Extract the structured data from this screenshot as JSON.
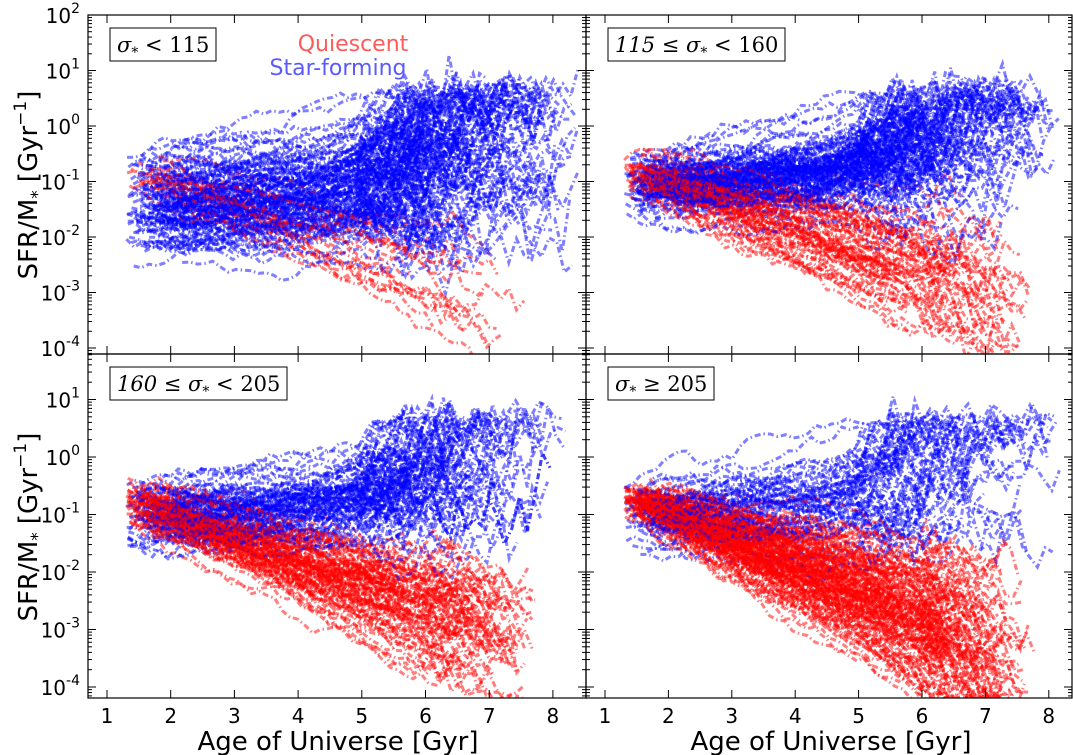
{
  "chart_data": {
    "type": "line",
    "layout": "2x2 panels, shared axes",
    "xlabel": "Age of Universe [Gyr]",
    "ylabel": "SFR/M_* [Gyr^-1]",
    "ylabel_parts": {
      "main": "SFR/M",
      "sub": "*",
      "unit": "[Gyr",
      "sup": "−1",
      "close": "]"
    },
    "xlim": [
      0.7,
      8.5
    ],
    "ylim": [
      5e-05,
      100
    ],
    "yscale": "log",
    "x_ticks": [
      1,
      2,
      3,
      4,
      5,
      6,
      7,
      8
    ],
    "y_ticks": [
      {
        "value": 0.0001,
        "base": "10",
        "exp": "-4"
      },
      {
        "value": 0.001,
        "base": "10",
        "exp": "-3"
      },
      {
        "value": 0.01,
        "base": "10",
        "exp": "-2"
      },
      {
        "value": 0.1,
        "base": "10",
        "exp": "-1"
      },
      {
        "value": 1,
        "base": "10",
        "exp": "0"
      },
      {
        "value": 10,
        "base": "10",
        "exp": "1"
      },
      {
        "value": 100,
        "base": "10",
        "exp": "2"
      }
    ],
    "grid": false,
    "legend": {
      "placement": "top-center of top-left panel",
      "entries": [
        {
          "name": "Quiescent",
          "color": "#ff5a5a"
        },
        {
          "name": "Star-forming",
          "color": "#5a5aff"
        }
      ]
    },
    "colors": {
      "quiescent": "#ff0000",
      "star_forming": "#0000ff"
    },
    "line_style": "dash-dot, alpha ~0.5",
    "panels": [
      {
        "id": "top-left",
        "label_parts": [
          "σ",
          "*",
          " < 115"
        ],
        "n_star_forming": 140,
        "n_quiescent": 20,
        "sf_trend": "flat near 0.1-0.2 Gyr^-1 from t≈1.4 Gyr, spreading 10^-3 to 3 between 5 and 8 Gyr",
        "q_trend": "few tracks declining to 10^-3–10^-4 near 6.5–7.5 Gyr",
        "sample_tracks": [
          {
            "class": "star-forming",
            "x": [
              1.4,
              3,
              5,
              6.5,
              7.5
            ],
            "y": [
              0.2,
              0.15,
              0.2,
              0.5,
              0.3
            ]
          },
          {
            "class": "star-forming",
            "x": [
              1.5,
              3,
              5,
              6.5,
              7.8
            ],
            "y": [
              0.06,
              0.08,
              0.1,
              0.2,
              0.05
            ]
          },
          {
            "class": "quiescent",
            "x": [
              1.5,
              3,
              5,
              6,
              6.6
            ],
            "y": [
              0.1,
              0.08,
              0.02,
              0.003,
              0.0002
            ]
          }
        ]
      },
      {
        "id": "top-right",
        "label_parts": [
          "115 ≤ σ",
          "*",
          " < 160"
        ],
        "n_star_forming": 130,
        "n_quiescent": 70,
        "sf_trend": "near 0.1–1 Gyr^-1, broad scatter after 5 Gyr",
        "q_trend": "declining from ~0.2 at 1.5 Gyr to 10^-3–10^-4 by 7–7.5 Gyr",
        "sample_tracks": [
          {
            "class": "star-forming",
            "x": [
              1.4,
              3,
              5,
              6.5,
              7.6
            ],
            "y": [
              0.25,
              0.2,
              0.3,
              0.6,
              0.2
            ]
          },
          {
            "class": "quiescent",
            "x": [
              1.4,
              3,
              5,
              6.5,
              7.3
            ],
            "y": [
              0.2,
              0.06,
              0.01,
              0.002,
              0.0003
            ]
          }
        ]
      },
      {
        "id": "bottom-left",
        "label_parts": [
          "160 ≤ σ",
          "*",
          " < 205"
        ],
        "n_star_forming": 90,
        "n_quiescent": 110,
        "sf_trend": "0.1–1 Gyr^-1 rising in scatter after 5 Gyr, peaks to ~4 near 6 Gyr",
        "q_trend": "declining from ~0.3 at 1.4 Gyr to 10^-2–10^-4 by 7–7.5 Gyr",
        "sample_tracks": [
          {
            "class": "star-forming",
            "x": [
              1.4,
              3,
              5,
              6,
              7.2
            ],
            "y": [
              0.3,
              0.25,
              0.3,
              0.8,
              0.3
            ]
          },
          {
            "class": "quiescent",
            "x": [
              1.4,
              3,
              5,
              6.5,
              7.2
            ],
            "y": [
              0.3,
              0.05,
              0.01,
              0.003,
              0.0003
            ]
          }
        ]
      },
      {
        "id": "bottom-right",
        "label_parts": [
          "σ",
          "*",
          " ≥ 205"
        ],
        "n_star_forming": 60,
        "n_quiescent": 170,
        "sf_trend": "mostly 0.01–1 Gyr^-1 after 4 Gyr, a few tracks up to ~4 near 6.2 Gyr",
        "q_trend": "steep decline from ~0.3 at 1.3 Gyr to 10^-3–10^-4 by 7 Gyr",
        "sample_tracks": [
          {
            "class": "star-forming",
            "x": [
              1.3,
              3,
              5,
              6.3,
              7.2
            ],
            "y": [
              0.3,
              0.15,
              0.1,
              0.3,
              0.1
            ]
          },
          {
            "class": "quiescent",
            "x": [
              1.3,
              3,
              5,
              6.5,
              7
            ],
            "y": [
              0.3,
              0.03,
              0.005,
              0.001,
              0.0002
            ]
          }
        ]
      }
    ]
  }
}
